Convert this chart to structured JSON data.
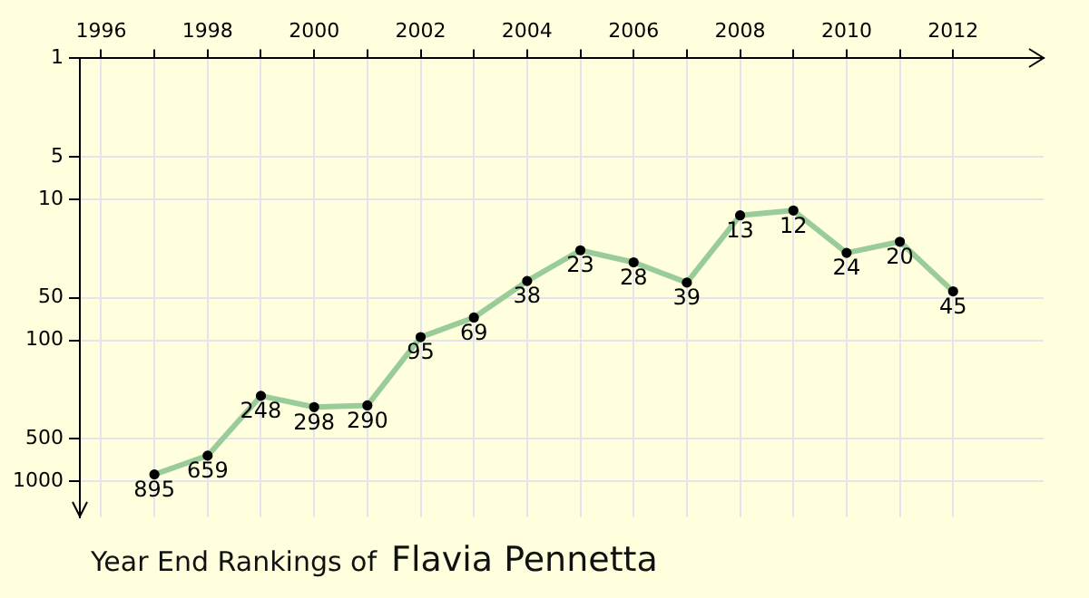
{
  "chart_data": {
    "type": "line",
    "title": "Year End Rankings of",
    "subtitle": "Flavia Pennetta",
    "x": [
      1997,
      1998,
      1999,
      2000,
      2001,
      2002,
      2003,
      2004,
      2005,
      2006,
      2007,
      2008,
      2009,
      2010,
      2011,
      2012
    ],
    "series": [
      {
        "color": "#99cc99",
        "values": [
          895,
          659,
          248,
          298,
          290,
          95,
          69,
          38,
          23,
          28,
          39,
          13,
          12,
          24,
          20,
          45
        ]
      }
    ],
    "xlim": [
      1995.6,
      2013.7
    ],
    "xticks": [
      1996,
      {
        "value": 1997,
        "label": null
      },
      1998,
      {
        "value": 1999,
        "label": null
      },
      2000,
      {
        "value": 2001,
        "label": null
      },
      2002,
      {
        "value": 2003,
        "label": null
      },
      2004,
      {
        "value": 2005,
        "label": null
      },
      2006,
      {
        "value": 2007,
        "label": null
      },
      2008,
      {
        "value": 2009,
        "label": null
      },
      2010,
      {
        "value": 2011,
        "label": null
      },
      2012
    ],
    "ylim": [
      1800,
      1
    ],
    "yticks": [
      1,
      5,
      10,
      50,
      100,
      500,
      1000
    ],
    "log": "y",
    "grid": true,
    "legend": false,
    "marker": "circle",
    "line_style": "solid",
    "data_labels": true
  }
}
